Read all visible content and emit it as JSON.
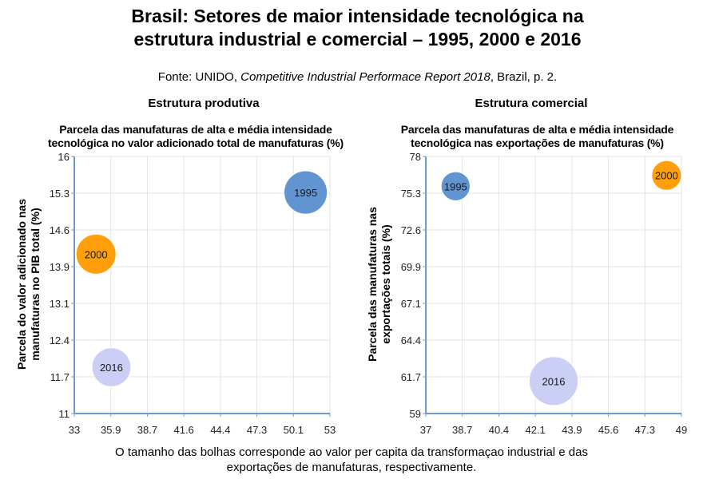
{
  "title_line1": "Brasil: Setores de maior intensidade tecnológica na",
  "title_line2": "estrutura industrial e comercial – 1995, 2000 e 2016",
  "source_prefix": "Fonte: UNIDO, ",
  "source_italic": "Competitive Industrial Performace Report 2018",
  "source_suffix": ", Brazil, p. 2.",
  "footnote_line1": "O tamanho das bolhas corresponde ao valor per capita da transformaçao industrial e das",
  "footnote_line2": "exportações de manufaturas, respectivamente.",
  "colors": {
    "1995": "#5b8fd0",
    "2000": "#ff9a00",
    "2016": "#c9ccf5",
    "axis": "#6a9bd1"
  },
  "chart_data": [
    {
      "type": "scatter",
      "section_title": "Estrutura produtiva",
      "title_line1": "Parcela das manufaturas de alta e média intensidade",
      "title_line2": "tecnológica no valor adicionado total de manufaturas (%)",
      "ylabel_line1": "Parcela do valor adicionado nas",
      "ylabel_line2": "manufaturas no PIB total (%)",
      "xlabel": "",
      "xlim": [
        33,
        53
      ],
      "ylim": [
        11,
        16
      ],
      "x_ticks": [
        "33",
        "35.9",
        "38.7",
        "41.6",
        "44.4",
        "47.3",
        "50.1",
        "53"
      ],
      "y_ticks": [
        "11",
        "11.7",
        "12.4",
        "13.1",
        "13.9",
        "14.6",
        "15.3",
        "16"
      ],
      "grid": true,
      "points": [
        {
          "label": "1995",
          "x": 51.1,
          "y": 15.3,
          "size": 1.17
        },
        {
          "label": "2000",
          "x": 34.7,
          "y": 14.1,
          "size": 1.0
        },
        {
          "label": "2016",
          "x": 35.9,
          "y": 11.9,
          "size": 0.95
        }
      ]
    },
    {
      "type": "scatter",
      "section_title": "Estrutura comercial",
      "title_line1": "Parcela das manufaturas de alta e média intensidade",
      "title_line2": "tecnológica nas exportações de manufaturas (%)",
      "ylabel_line1": "Parcela das manufaturas nas",
      "ylabel_line2": "exportações totais (%)",
      "xlabel": "",
      "xlim": [
        37,
        49
      ],
      "ylim": [
        59,
        78
      ],
      "x_ticks": [
        "37",
        "38.7",
        "40.4",
        "42.1",
        "43.9",
        "45.6",
        "47.3",
        "49"
      ],
      "y_ticks": [
        "59",
        "61.7",
        "64.4",
        "67.1",
        "69.9",
        "72.6",
        "75.3",
        "78"
      ],
      "grid": true,
      "points": [
        {
          "label": "1995",
          "x": 38.4,
          "y": 75.8,
          "size": 0.75
        },
        {
          "label": "2000",
          "x": 48.3,
          "y": 76.6,
          "size": 0.78
        },
        {
          "label": "2016",
          "x": 43.0,
          "y": 61.4,
          "size": 2.12
        }
      ]
    }
  ]
}
